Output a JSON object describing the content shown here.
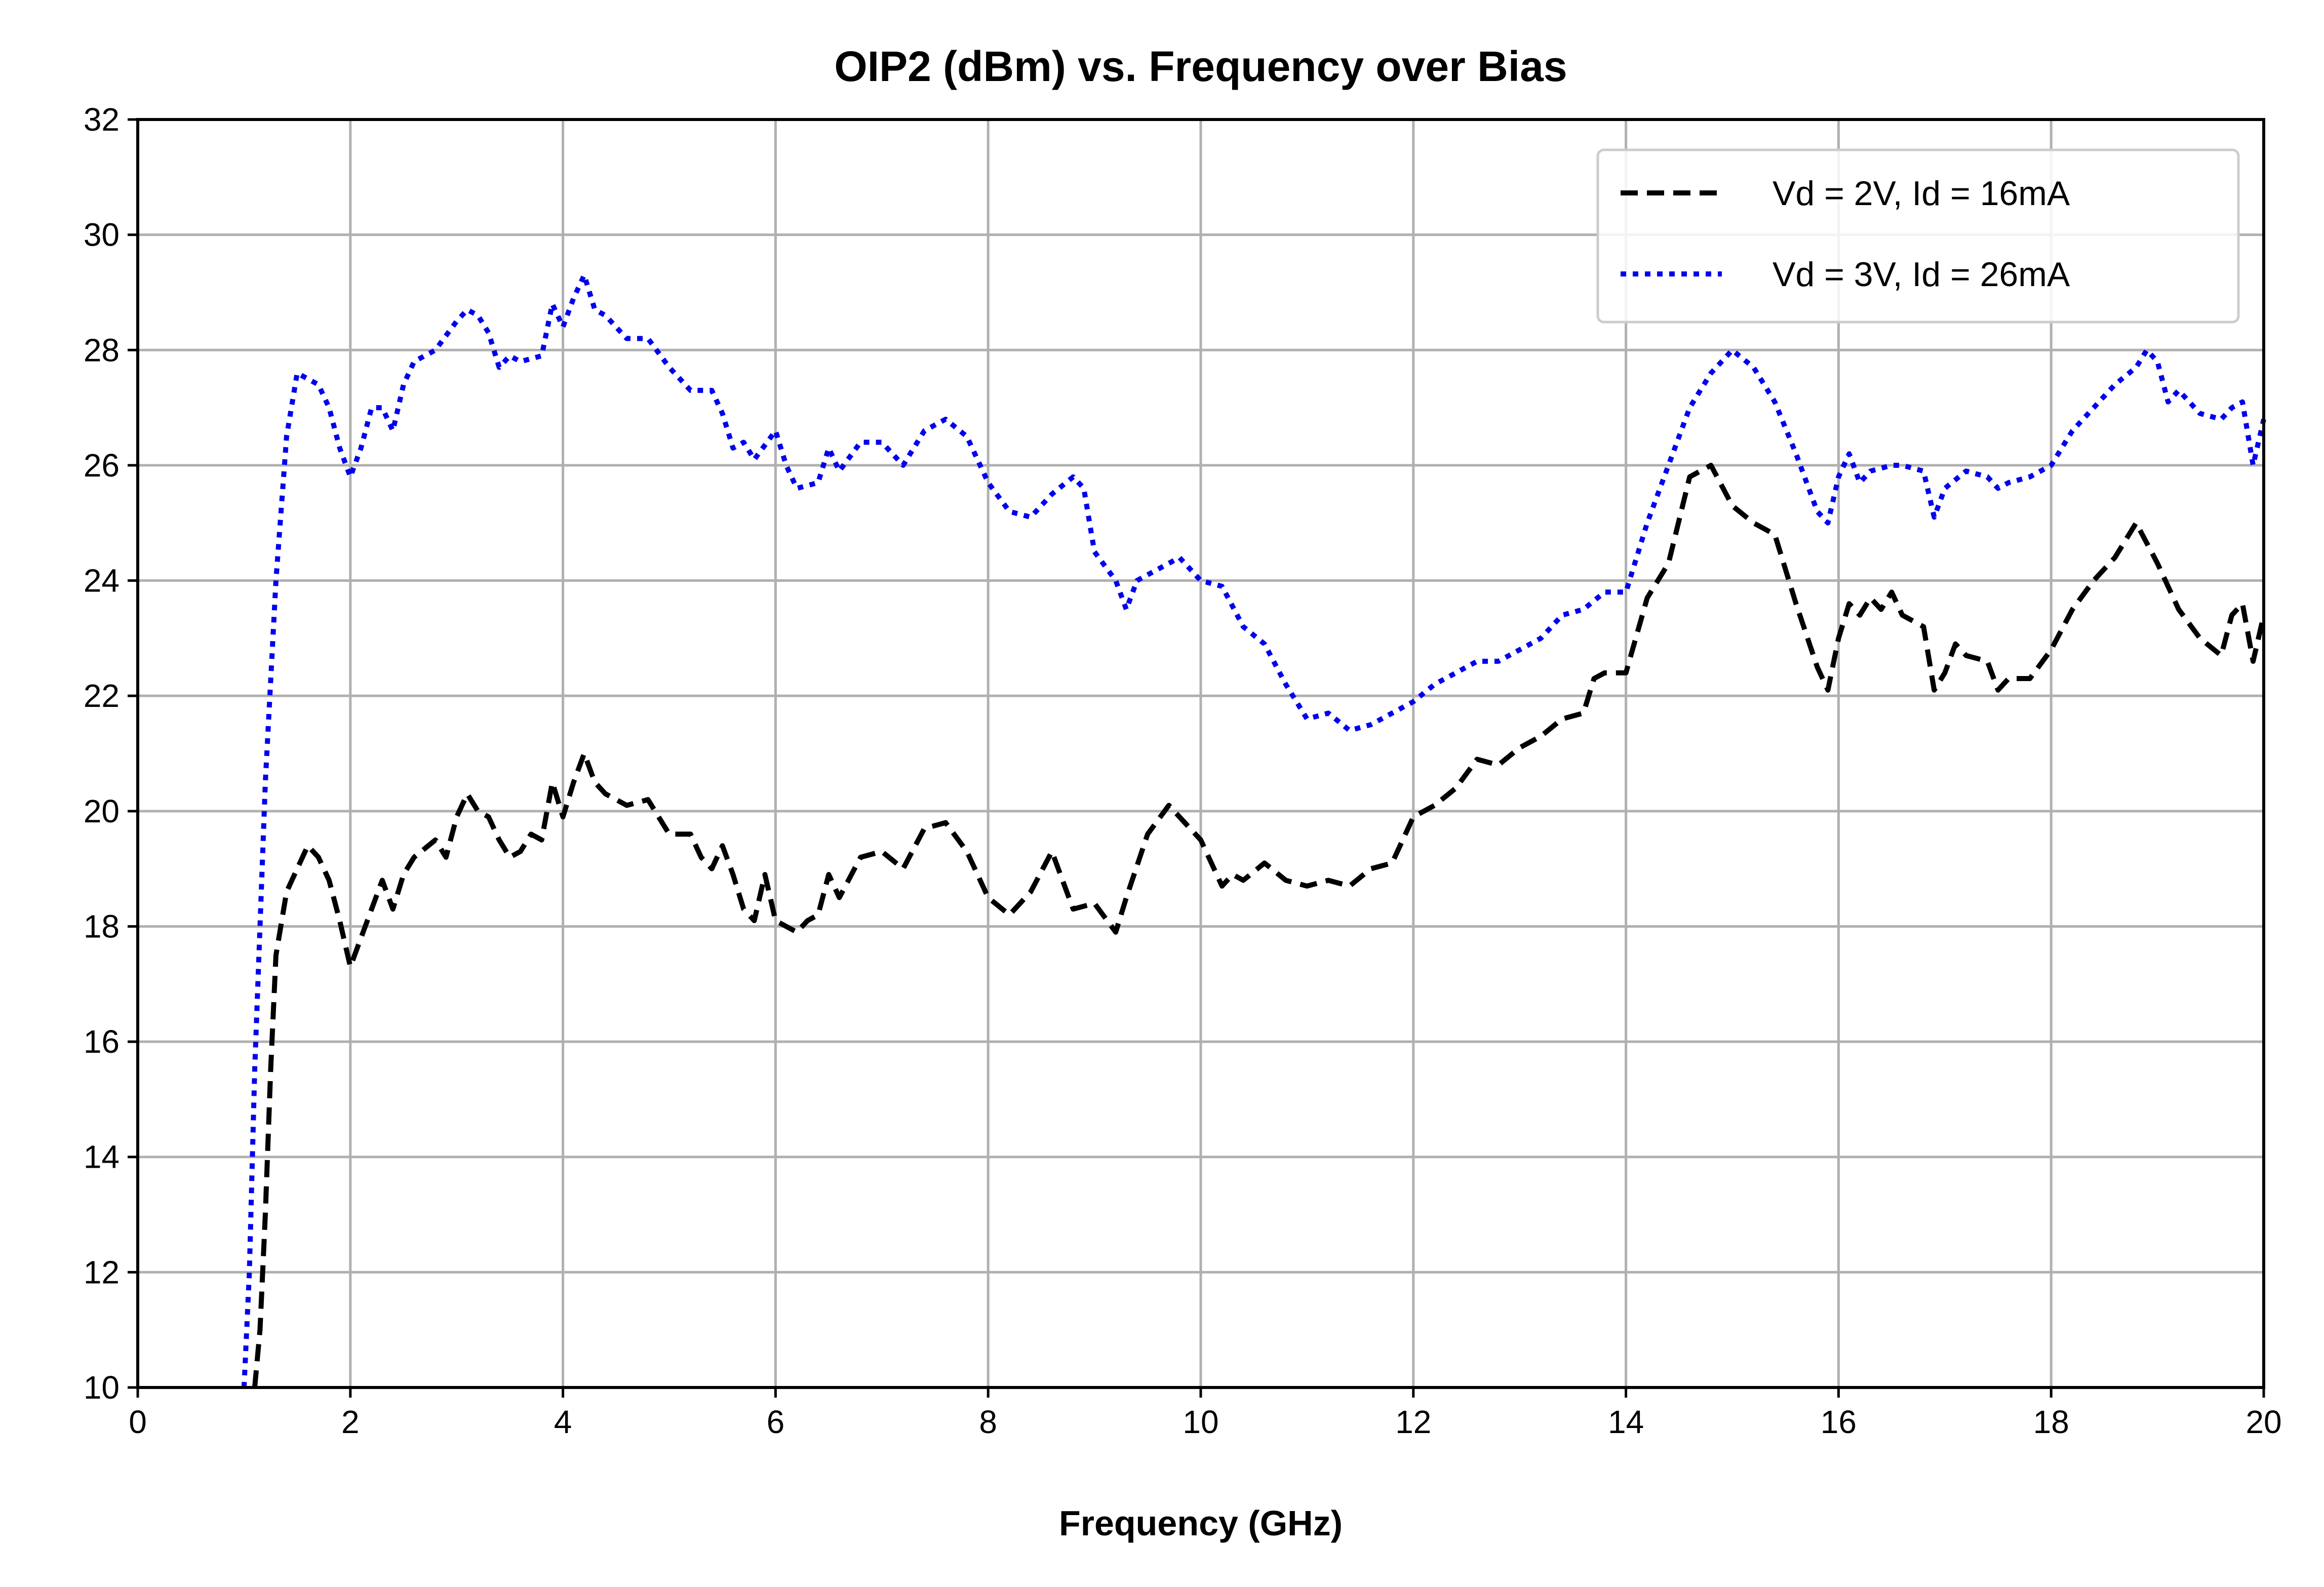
{
  "chart_data": {
    "type": "line",
    "title": "OIP2 (dBm) vs. Frequency over Bias",
    "xlabel": "Frequency (GHz)",
    "ylabel": "",
    "xlim": [
      0,
      20
    ],
    "ylim": [
      10,
      32
    ],
    "xticks": [
      0,
      2,
      4,
      6,
      8,
      10,
      12,
      14,
      16,
      18,
      20
    ],
    "yticks": [
      10,
      12,
      14,
      16,
      18,
      20,
      22,
      24,
      26,
      28,
      30,
      32
    ],
    "grid": true,
    "legend_position": "top-right",
    "series": [
      {
        "name": "Vd = 2V, Id = 16mA",
        "color": "#000000",
        "line_style": "dashed",
        "x": [
          1.1,
          1.15,
          1.2,
          1.25,
          1.3,
          1.4,
          1.5,
          1.6,
          1.7,
          1.8,
          1.9,
          2.0,
          2.1,
          2.2,
          2.3,
          2.4,
          2.5,
          2.6,
          2.8,
          2.9,
          3.0,
          3.1,
          3.2,
          3.3,
          3.4,
          3.5,
          3.6,
          3.7,
          3.8,
          3.9,
          4.0,
          4.1,
          4.2,
          4.3,
          4.4,
          4.6,
          4.8,
          5.0,
          5.2,
          5.3,
          5.4,
          5.5,
          5.6,
          5.7,
          5.8,
          5.9,
          6.0,
          6.2,
          6.3,
          6.4,
          6.5,
          6.6,
          6.8,
          7.0,
          7.2,
          7.4,
          7.6,
          7.8,
          8.0,
          8.2,
          8.4,
          8.6,
          8.8,
          9.0,
          9.2,
          9.3,
          9.5,
          9.7,
          9.9,
          10.0,
          10.2,
          10.3,
          10.4,
          10.6,
          10.8,
          11.0,
          11.2,
          11.4,
          11.6,
          11.8,
          12.0,
          12.2,
          12.4,
          12.6,
          12.8,
          13.0,
          13.2,
          13.4,
          13.6,
          13.7,
          13.8,
          14.0,
          14.2,
          14.4,
          14.6,
          14.8,
          15.0,
          15.2,
          15.4,
          15.6,
          15.8,
          15.9,
          16.0,
          16.1,
          16.2,
          16.3,
          16.4,
          16.5,
          16.6,
          16.8,
          16.9,
          17.0,
          17.1,
          17.2,
          17.4,
          17.5,
          17.6,
          17.8,
          18.0,
          18.2,
          18.4,
          18.6,
          18.8,
          19.0,
          19.2,
          19.4,
          19.6,
          19.7,
          19.8,
          19.9,
          20.0
        ],
        "y": [
          10.0,
          11.0,
          13.0,
          15.5,
          17.5,
          18.6,
          19.0,
          19.4,
          19.2,
          18.8,
          18.1,
          17.3,
          17.8,
          18.3,
          18.8,
          18.3,
          18.9,
          19.2,
          19.5,
          19.2,
          19.9,
          20.3,
          20.0,
          19.9,
          19.5,
          19.2,
          19.3,
          19.6,
          19.5,
          20.5,
          19.9,
          20.5,
          21.0,
          20.5,
          20.3,
          20.1,
          20.2,
          19.6,
          19.6,
          19.2,
          19.0,
          19.4,
          18.9,
          18.3,
          18.1,
          18.9,
          18.1,
          17.9,
          18.1,
          18.2,
          18.9,
          18.5,
          19.2,
          19.3,
          19.0,
          19.7,
          19.8,
          19.3,
          18.5,
          18.2,
          18.6,
          19.3,
          18.3,
          18.4,
          17.9,
          18.5,
          19.6,
          20.1,
          19.7,
          19.5,
          18.7,
          18.9,
          18.8,
          19.1,
          18.8,
          18.7,
          18.8,
          18.7,
          19.0,
          19.1,
          19.9,
          20.1,
          20.4,
          20.9,
          20.8,
          21.1,
          21.3,
          21.6,
          21.7,
          22.3,
          22.4,
          22.4,
          23.7,
          24.3,
          25.8,
          26.0,
          25.3,
          25.0,
          24.8,
          23.6,
          22.5,
          22.1,
          23.0,
          23.6,
          23.4,
          23.7,
          23.5,
          23.8,
          23.4,
          23.2,
          22.1,
          22.4,
          22.9,
          22.7,
          22.6,
          22.1,
          22.3,
          22.3,
          22.8,
          23.5,
          24.0,
          24.4,
          25.0,
          24.3,
          23.5,
          23.0,
          22.7,
          23.4,
          23.6,
          22.6,
          23.4
        ]
      },
      {
        "name": "Vd = 3V, Id = 26mA",
        "color": "#0000ee",
        "line_style": "dotted",
        "x": [
          1.0,
          1.05,
          1.1,
          1.2,
          1.3,
          1.4,
          1.5,
          1.6,
          1.7,
          1.8,
          1.9,
          2.0,
          2.1,
          2.2,
          2.3,
          2.4,
          2.5,
          2.6,
          2.8,
          3.0,
          3.1,
          3.2,
          3.3,
          3.4,
          3.5,
          3.6,
          3.8,
          3.9,
          4.0,
          4.1,
          4.2,
          4.3,
          4.4,
          4.6,
          4.8,
          5.0,
          5.2,
          5.4,
          5.5,
          5.6,
          5.7,
          5.8,
          6.0,
          6.1,
          6.2,
          6.4,
          6.5,
          6.6,
          6.8,
          7.0,
          7.2,
          7.4,
          7.6,
          7.8,
          8.0,
          8.2,
          8.4,
          8.6,
          8.8,
          8.9,
          9.0,
          9.2,
          9.3,
          9.4,
          9.6,
          9.8,
          10.0,
          10.2,
          10.4,
          10.6,
          10.8,
          11.0,
          11.2,
          11.4,
          11.6,
          11.8,
          12.0,
          12.2,
          12.4,
          12.6,
          12.8,
          13.0,
          13.2,
          13.4,
          13.6,
          13.8,
          14.0,
          14.2,
          14.4,
          14.6,
          14.8,
          15.0,
          15.2,
          15.4,
          15.6,
          15.8,
          15.9,
          16.0,
          16.1,
          16.2,
          16.3,
          16.5,
          16.6,
          16.8,
          16.9,
          17.0,
          17.2,
          17.4,
          17.5,
          17.6,
          17.8,
          18.0,
          18.2,
          18.4,
          18.6,
          18.8,
          18.9,
          19.0,
          19.1,
          19.2,
          19.4,
          19.6,
          19.7,
          19.8,
          19.9,
          20.0
        ],
        "y": [
          10.0,
          12.0,
          15.5,
          20.5,
          24.0,
          26.5,
          27.6,
          27.5,
          27.4,
          27.0,
          26.3,
          25.8,
          26.3,
          27.0,
          27.0,
          26.6,
          27.4,
          27.8,
          28.0,
          28.5,
          28.7,
          28.6,
          28.3,
          27.7,
          27.9,
          27.8,
          27.9,
          28.8,
          28.4,
          28.9,
          29.3,
          28.7,
          28.6,
          28.2,
          28.2,
          27.7,
          27.3,
          27.3,
          26.9,
          26.3,
          26.4,
          26.1,
          26.6,
          26.0,
          25.6,
          25.7,
          26.3,
          25.9,
          26.4,
          26.4,
          26.0,
          26.6,
          26.8,
          26.5,
          25.7,
          25.2,
          25.1,
          25.5,
          25.8,
          25.6,
          24.5,
          24.0,
          23.5,
          24.0,
          24.2,
          24.4,
          24.0,
          23.9,
          23.2,
          22.9,
          22.2,
          21.6,
          21.7,
          21.4,
          21.5,
          21.7,
          21.9,
          22.2,
          22.4,
          22.6,
          22.6,
          22.8,
          23.0,
          23.4,
          23.5,
          23.8,
          23.8,
          25.0,
          26.0,
          27.0,
          27.6,
          28.0,
          27.7,
          27.1,
          26.2,
          25.2,
          25.0,
          25.8,
          26.2,
          25.7,
          25.9,
          26.0,
          26.0,
          25.9,
          25.1,
          25.6,
          25.9,
          25.8,
          25.6,
          25.7,
          25.8,
          26.0,
          26.6,
          27.0,
          27.4,
          27.7,
          28.0,
          27.8,
          27.1,
          27.3,
          26.9,
          26.8,
          27.0,
          27.1,
          26.0,
          26.8
        ]
      }
    ]
  }
}
